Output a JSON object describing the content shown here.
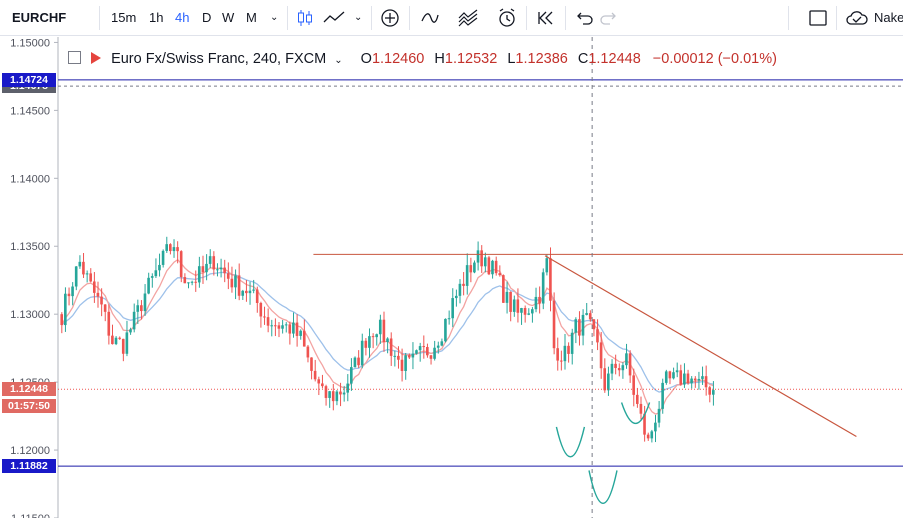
{
  "toolbar": {
    "symbol": "EURCHF",
    "intervals": [
      "15m",
      "1h",
      "4h",
      "D",
      "W",
      "M"
    ],
    "active_interval": "4h",
    "right_label": "Nake"
  },
  "legend": {
    "title": "Euro Fx/Swiss Franc, 240, FXCM",
    "open_label": "O",
    "open": "1.12460",
    "high_label": "H",
    "high": "1.12532",
    "low_label": "L",
    "low": "1.12386",
    "close_label": "C",
    "close": "1.12448",
    "change": "−0.00012 (−0.01%)"
  },
  "price_tags": {
    "top_dashed": "1.14678",
    "upper_line": "1.14724",
    "current": "1.12448",
    "countdown": "01:57:50",
    "lower_line": "1.11882"
  },
  "colors": {
    "up": "#26a69a",
    "down": "#ef5350",
    "hline": "#1a1aa8",
    "trend": "#c8563e",
    "pattern": "#26a69a",
    "ma_fast": "#f3a3a1",
    "ma_slow": "#9ec1ea",
    "current_tag": "#e06a63",
    "hline_tag": "#1919c8",
    "top_tag": "#5d606b"
  },
  "chart_data": {
    "type": "candlestick",
    "title": "Euro Fx/Swiss Franc, 240, FXCM",
    "y_ticks": [
      1.115,
      1.12,
      1.125,
      1.13,
      1.135,
      1.14,
      1.145,
      1.15
    ],
    "y_tick_labels": [
      "1.11500",
      "1.12000",
      "1.12500",
      "1.13000",
      "1.13500",
      "1.14000",
      "1.14500",
      "1.15000"
    ],
    "ylim": [
      1.115,
      1.1504
    ],
    "x_bars": 181,
    "horizontal_lines": [
      1.14724,
      1.11882
    ],
    "dashed_price_line": 1.14678,
    "current_price_line": 1.12448,
    "resistance_line": {
      "from_bar": 70,
      "to_bar": 239,
      "price": 1.1344
    },
    "descending_trendline": {
      "from_bar": 134,
      "from_price": 1.1343,
      "to_bar": 220,
      "to_price": 1.121
    },
    "crosshair_bar": 147,
    "pattern_arcs": [
      {
        "label": "left-shoulder",
        "center_bar": 141,
        "top_price": 1.1217,
        "bottom_price": 1.1197
      },
      {
        "label": "head",
        "center_bar": 150,
        "top_price": 1.1185,
        "bottom_price": 1.1163
      },
      {
        "label": "right-shoulder",
        "center_bar": 159,
        "top_price": 1.1235,
        "bottom_price": 1.1221
      }
    ],
    "close_path": [
      [
        0,
        1.13
      ],
      [
        3,
        1.1325
      ],
      [
        5,
        1.1338
      ],
      [
        8,
        1.132
      ],
      [
        11,
        1.1305
      ],
      [
        14,
        1.128
      ],
      [
        17,
        1.1278
      ],
      [
        20,
        1.1295
      ],
      [
        23,
        1.1315
      ],
      [
        26,
        1.133
      ],
      [
        29,
        1.1345
      ],
      [
        31,
        1.1352
      ],
      [
        33,
        1.133
      ],
      [
        36,
        1.1325
      ],
      [
        39,
        1.133
      ],
      [
        42,
        1.134
      ],
      [
        45,
        1.133
      ],
      [
        48,
        1.1322
      ],
      [
        51,
        1.1318
      ],
      [
        54,
        1.1308
      ],
      [
        57,
        1.1295
      ],
      [
        60,
        1.1292
      ],
      [
        63,
        1.129
      ],
      [
        66,
        1.1282
      ],
      [
        69,
        1.1258
      ],
      [
        72,
        1.124
      ],
      [
        75,
        1.124
      ],
      [
        78,
        1.1245
      ],
      [
        81,
        1.1262
      ],
      [
        84,
        1.1282
      ],
      [
        87,
        1.1292
      ],
      [
        90,
        1.128
      ],
      [
        93,
        1.1265
      ],
      [
        96,
        1.1262
      ],
      [
        99,
        1.127
      ],
      [
        102,
        1.1275
      ],
      [
        105,
        1.1288
      ],
      [
        108,
        1.1308
      ],
      [
        111,
        1.1325
      ],
      [
        114,
        1.134
      ],
      [
        117,
        1.1342
      ],
      [
        120,
        1.1328
      ],
      [
        123,
        1.131
      ],
      [
        126,
        1.13
      ],
      [
        129,
        1.1305
      ],
      [
        132,
        1.1315
      ],
      [
        134,
        1.1338
      ],
      [
        136,
        1.1275
      ],
      [
        139,
        1.127
      ],
      [
        142,
        1.129
      ],
      [
        145,
        1.1295
      ],
      [
        148,
        1.1275
      ],
      [
        150,
        1.1248
      ],
      [
        153,
        1.1262
      ],
      [
        156,
        1.1265
      ],
      [
        159,
        1.1232
      ],
      [
        162,
        1.1205
      ],
      [
        164,
        1.1225
      ],
      [
        167,
        1.125
      ],
      [
        170,
        1.1252
      ],
      [
        173,
        1.1255
      ],
      [
        176,
        1.1248
      ],
      [
        180,
        1.1245
      ]
    ]
  }
}
